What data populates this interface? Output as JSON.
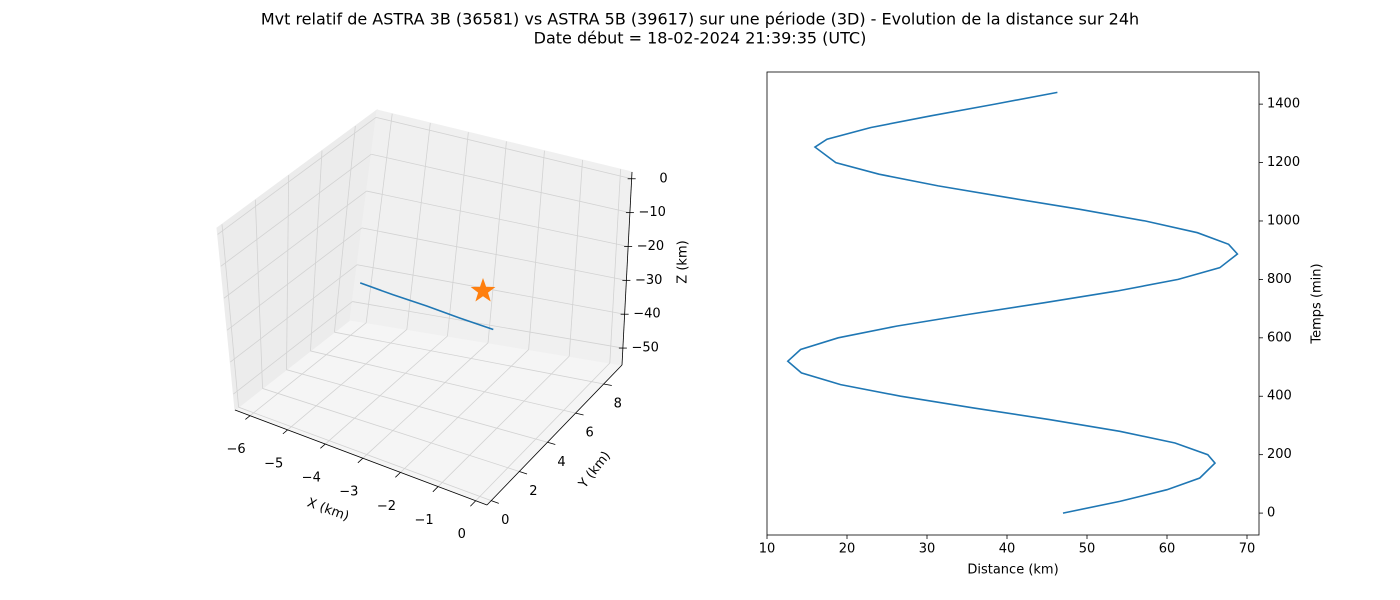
{
  "title": "Mvt relatif de ASTRA 3B (36581) vs ASTRA 5B (39617) sur une période (3D) - Evolution de la distance sur 24h",
  "subtitle": "Date début = 18-02-2024 21:39:35 (UTC)",
  "chart_data": [
    {
      "type": "line3d",
      "xlabel": "X (km)",
      "ylabel": "Y (km)",
      "zlabel": "Z (km)",
      "xlim": [
        -6.4,
        0.3
      ],
      "ylim": [
        -0.3,
        9.3
      ],
      "zlim": [
        -55,
        2
      ],
      "xticks": [
        {
          "value": -6,
          "label": "−6"
        },
        {
          "value": -5,
          "label": "−5"
        },
        {
          "value": -4,
          "label": "−4"
        },
        {
          "value": -3,
          "label": "−3"
        },
        {
          "value": -2,
          "label": "−2"
        },
        {
          "value": -1,
          "label": "−1"
        },
        0
      ],
      "yticks": [
        0,
        2,
        4,
        6,
        8
      ],
      "zticks": [
        0,
        {
          "value": -10,
          "label": "−10"
        },
        {
          "value": -20,
          "label": "−20"
        },
        {
          "value": -30,
          "label": "−30"
        },
        {
          "value": -40,
          "label": "−40"
        },
        {
          "value": -50,
          "label": "−50"
        }
      ],
      "grid": true,
      "series": [
        {
          "color": "#1f77b4",
          "x": [
            -4.5,
            -3.5,
            -2.5,
            -1.5,
            -0.5
          ],
          "y": [
            3.85,
            3.4,
            3.0,
            2.55,
            2.15
          ],
          "z": [
            -23.5,
            -22.5,
            -21.4,
            -20.3,
            -19.2
          ]
        },
        {
          "color": "#ff7f0e",
          "marker": "star",
          "x": [
            0
          ],
          "y": [
            0
          ],
          "z": [
            0
          ]
        }
      ]
    },
    {
      "type": "line",
      "xlabel": "Distance (km)",
      "ylabel": "Temps (min)",
      "yaxis_side": "right",
      "xlim": [
        10,
        71.5
      ],
      "ylim": [
        -75,
        1510
      ],
      "xticks": [
        10,
        20,
        30,
        40,
        50,
        60,
        70
      ],
      "yticks": [
        0,
        200,
        400,
        600,
        800,
        1000,
        1200,
        1400
      ],
      "series": [
        {
          "color": "#1f77b4",
          "x": [
            47,
            54.1,
            60,
            64.1,
            66,
            65.1,
            61,
            54.1,
            45.3,
            35.8,
            26.7,
            19.2,
            14.3,
            12.6,
            14.2,
            18.9,
            26.2,
            35.1,
            44.6,
            53.7,
            61.4,
            66.6,
            68.8,
            67.7,
            63.8,
            57.3,
            49.1,
            40.1,
            31.4,
            24,
            18.6,
            16,
            17.5,
            23,
            30.5,
            38.5,
            46.3
          ],
          "y": [
            0,
            40,
            80,
            120,
            171,
            200,
            240,
            280,
            320,
            360,
            400,
            440,
            480,
            520,
            560,
            600,
            640,
            680,
            720,
            760,
            800,
            840,
            887,
            920,
            960,
            1000,
            1040,
            1080,
            1120,
            1160,
            1200,
            1253,
            1280,
            1320,
            1360,
            1400,
            1440
          ]
        }
      ]
    }
  ]
}
